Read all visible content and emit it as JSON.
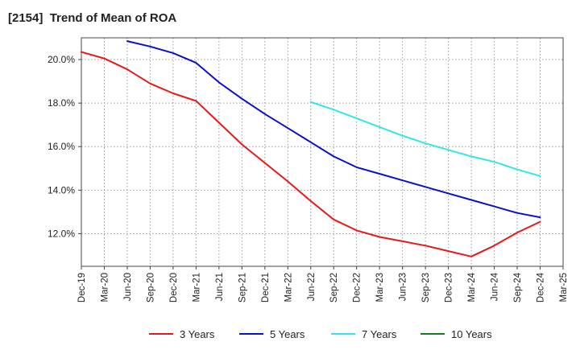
{
  "chart_data": {
    "type": "line",
    "title": "[2154]  Trend of Mean of ROA",
    "xlabel": "",
    "ylabel": "",
    "ylim": [
      10.5,
      21.0
    ],
    "yticks": [
      {
        "value": 12,
        "label": "12.0%"
      },
      {
        "value": 14,
        "label": "14.0%"
      },
      {
        "value": 16,
        "label": "16.0%"
      },
      {
        "value": 18,
        "label": "18.0%"
      },
      {
        "value": 20,
        "label": "20.0%"
      }
    ],
    "categories": [
      "Dec-19",
      "Mar-20",
      "Jun-20",
      "Sep-20",
      "Dec-20",
      "Mar-21",
      "Jun-21",
      "Sep-21",
      "Dec-21",
      "Mar-22",
      "Jun-22",
      "Sep-22",
      "Dec-22",
      "Mar-23",
      "Jun-23",
      "Sep-23",
      "Dec-23",
      "Mar-24",
      "Jun-24",
      "Sep-24",
      "Dec-24",
      "Mar-25"
    ],
    "grid": true,
    "legend_position": "bottom",
    "series": [
      {
        "name": "3 Years",
        "color": "#e31a1c",
        "values": [
          20.35,
          20.05,
          19.55,
          18.9,
          18.45,
          18.1,
          17.1,
          16.1,
          15.25,
          14.4,
          13.5,
          12.65,
          12.15,
          11.85,
          11.65,
          11.45,
          11.2,
          10.95,
          11.45,
          12.05,
          12.55,
          null
        ]
      },
      {
        "name": "5 Years",
        "color": "#0a10c8",
        "values": [
          null,
          null,
          20.85,
          20.6,
          20.3,
          19.85,
          18.95,
          18.2,
          17.5,
          16.85,
          16.2,
          15.55,
          15.05,
          14.75,
          14.45,
          14.15,
          13.85,
          13.55,
          13.25,
          12.95,
          12.75,
          null
        ]
      },
      {
        "name": "7 Years",
        "color": "#33e6e6",
        "values": [
          null,
          null,
          null,
          null,
          null,
          null,
          null,
          null,
          null,
          null,
          18.05,
          17.7,
          17.3,
          16.9,
          16.5,
          16.15,
          15.85,
          15.55,
          15.3,
          14.95,
          14.65,
          null
        ]
      },
      {
        "name": "10 Years",
        "color": "#1a7a1a",
        "values": [
          null,
          null,
          null,
          null,
          null,
          null,
          null,
          null,
          null,
          null,
          null,
          null,
          null,
          null,
          null,
          null,
          null,
          null,
          null,
          null,
          null,
          null
        ]
      }
    ]
  }
}
